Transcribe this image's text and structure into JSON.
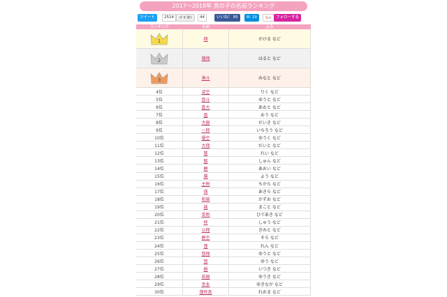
{
  "title": "2017～2018年 男の子の名前ランキング",
  "social": {
    "tweet": "ツイート",
    "tweet_count": "2524",
    "iine": "イイネ!",
    "iine_count": "44",
    "like": "いいね！",
    "like_count": "95",
    "hatena": "B!",
    "hatena_count": "19",
    "gplus": "G+",
    "follow": "フォローする"
  },
  "header": [
    "ランキング",
    "名前",
    "よみ"
  ],
  "rows": [
    {
      "rank": "1",
      "name": "翔",
      "reading": "かける など"
    },
    {
      "rank": "2",
      "name": "陽翔",
      "reading": "はると など"
    },
    {
      "rank": "3",
      "name": "湊斗",
      "reading": "みなと など"
    },
    {
      "rank": "4位",
      "name": "凌空",
      "reading": "りく など"
    },
    {
      "rank": "5位",
      "name": "悠斗",
      "reading": "ゆうと など"
    },
    {
      "rank": "6位",
      "name": "蒼大",
      "reading": "あおと など"
    },
    {
      "rank": "7位",
      "name": "凰",
      "reading": "おう など"
    },
    {
      "rank": "8位",
      "name": "大樹",
      "reading": "だいき など"
    },
    {
      "rank": "9位",
      "name": "一郎",
      "reading": "いちろう など"
    },
    {
      "rank": "10位",
      "name": "優空",
      "reading": "ゆうく など"
    },
    {
      "rank": "11位",
      "name": "大翔",
      "reading": "だいと など"
    },
    {
      "rank": "12位",
      "name": "黎",
      "reading": "れい など"
    },
    {
      "rank": "13位",
      "name": "駿",
      "reading": "しゅん など"
    },
    {
      "rank": "14位",
      "name": "碧",
      "reading": "あおい など"
    },
    {
      "rank": "15位",
      "name": "陽",
      "reading": "よう など"
    },
    {
      "rank": "16位",
      "name": "主税",
      "reading": "ちから など"
    },
    {
      "rank": "17位",
      "name": "瑛",
      "reading": "あきら など"
    },
    {
      "rank": "18位",
      "name": "和雄",
      "reading": "かずお など"
    },
    {
      "rank": "19位",
      "name": "誠",
      "reading": "まこと など"
    },
    {
      "rank": "20位",
      "name": "英明",
      "reading": "ひであき など"
    },
    {
      "rank": "21位",
      "name": "柊",
      "reading": "しゅう など"
    },
    {
      "rank": "22位",
      "name": "公翔",
      "reading": "きみと など"
    },
    {
      "rank": "23位",
      "name": "碧空",
      "reading": "そら など"
    },
    {
      "rank": "24位",
      "name": "蓮",
      "reading": "れん など"
    },
    {
      "rank": "25位",
      "name": "悠翔",
      "reading": "ゆうと など"
    },
    {
      "rank": "26位",
      "name": "悠",
      "reading": "ゆう など"
    },
    {
      "rank": "27位",
      "name": "樹",
      "reading": "いつき など"
    },
    {
      "rank": "28位",
      "name": "祐樹",
      "reading": "ゆうき など"
    },
    {
      "rank": "29位",
      "name": "幸永",
      "reading": "ゆきなが など"
    },
    {
      "rank": "30位",
      "name": "蓮旺真",
      "reading": "れおま など"
    }
  ]
}
